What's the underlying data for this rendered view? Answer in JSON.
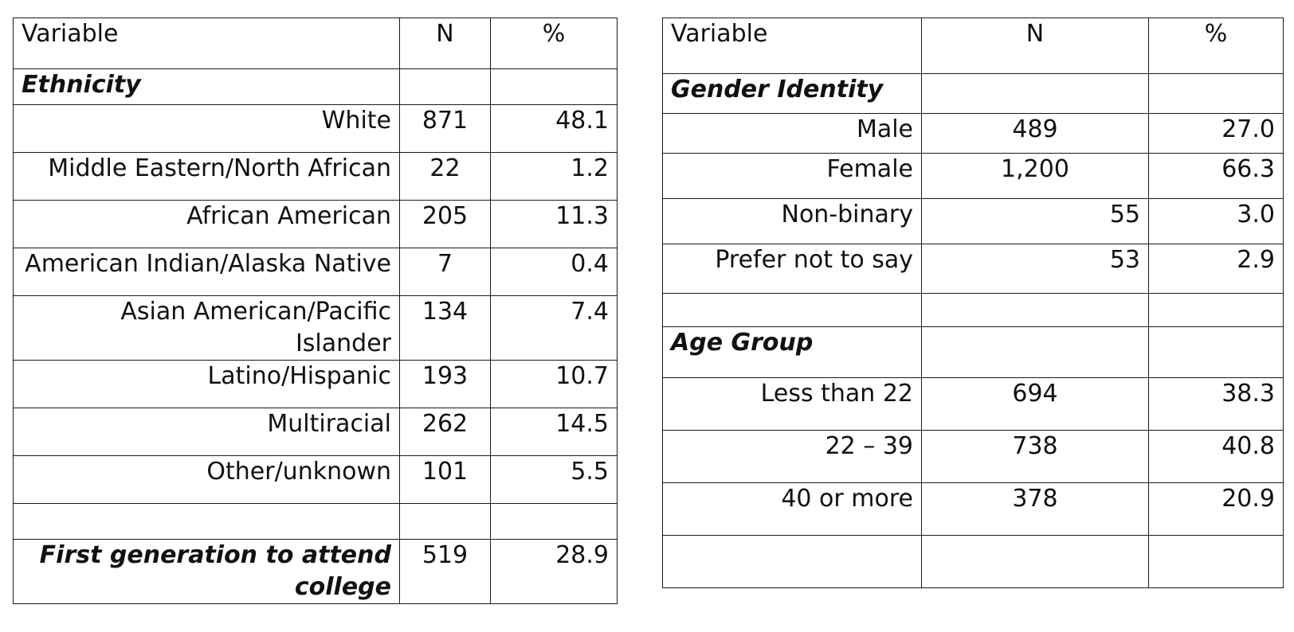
{
  "left_table": {
    "headers": {
      "variable": "Variable",
      "n": "N",
      "pct": "%"
    },
    "section_ethnicity": "Ethnicity",
    "rows": [
      {
        "label": "White",
        "n": "871",
        "pct": "48.1"
      },
      {
        "label": "Middle Eastern/North African",
        "n": "22",
        "pct": "1.2"
      },
      {
        "label": "African American",
        "n": "205",
        "pct": "11.3"
      },
      {
        "label": "American Indian/Alaska Native",
        "n": "7",
        "pct": "0.4"
      },
      {
        "label": "Asian American/Pacific Islander",
        "n": "134",
        "pct": "7.4"
      },
      {
        "label": "Latino/Hispanic",
        "n": "193",
        "pct": "10.7"
      },
      {
        "label": "Multiracial",
        "n": "262",
        "pct": "14.5"
      },
      {
        "label": "Other/unknown",
        "n": "101",
        "pct": "5.5"
      }
    ],
    "first_gen": {
      "label": "First generation to attend college",
      "n": "519",
      "pct": "28.9"
    }
  },
  "right_table": {
    "headers": {
      "variable": "Variable",
      "n": "N",
      "pct": "%"
    },
    "section_gender": "Gender Identity",
    "gender_rows": [
      {
        "label": "Male",
        "n": "489",
        "pct": "27.0"
      },
      {
        "label": "Female",
        "n": "1,200",
        "pct": "66.3"
      },
      {
        "label": "Non-binary",
        "n": "55",
        "pct": "3.0"
      },
      {
        "label": "Prefer not to say",
        "n": "53",
        "pct": "2.9"
      }
    ],
    "section_age": "Age Group",
    "age_rows": [
      {
        "label": "Less than 22",
        "n": "694",
        "pct": "38.3"
      },
      {
        "label": "22 – 39",
        "n": "738",
        "pct": "40.8"
      },
      {
        "label": "40 or more",
        "n": "378",
        "pct": "20.9"
      }
    ]
  }
}
